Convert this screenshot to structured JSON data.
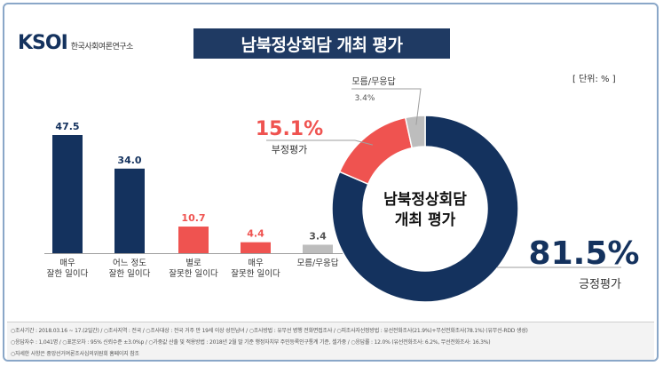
{
  "header": {
    "logo_mark": "KSOI",
    "logo_name": "한국사회여론연구소",
    "title": "남북정상회담 개최 평가",
    "unit": "[ 단위: % ]"
  },
  "chart_data": [
    {
      "type": "bar",
      "categories": [
        "매우\n잘한 일이다",
        "어느 정도\n잘한 일이다",
        "별로\n잘못한 일이다",
        "매우\n잘못한 일이다",
        "모름/무응답"
      ],
      "values": [
        47.5,
        34.0,
        10.7,
        4.4,
        3.4
      ],
      "value_labels": [
        "47.5",
        "34.0",
        "10.7",
        "4.4",
        "3.4"
      ],
      "colors": [
        "#14325e",
        "#14325e",
        "#ef5350",
        "#ef5350",
        "#bdbdbd"
      ],
      "label_colors": [
        "#14325e",
        "#14325e",
        "#ef5350",
        "#ef5350",
        "#555555"
      ]
    },
    {
      "type": "pie",
      "center_text": [
        "남북정상회담",
        "개최 평가"
      ],
      "slices": [
        {
          "label": "긍정평가",
          "value": 81.5,
          "value_label": "81.5%",
          "color": "#14325e"
        },
        {
          "label": "부정평가",
          "value": 15.1,
          "value_label": "15.1%",
          "color": "#ef5350"
        },
        {
          "label": "모름/무응답",
          "value": 3.4,
          "value_label": "3.4%",
          "color": "#bdbdbd"
        }
      ]
    }
  ],
  "footer": {
    "line1": "○조사기간 : 2018.03.16 ~ 17.(2일간)  / ○조사지역 : 전국  / ○조사대상 : 전국 거주 만 19세 이상 성인남녀  / ○조사방법 : 유무선 병행 전화면접조사  / ○피조사자선정방법 : 유선전화조사(21.9%)+무선전화조사(78.1%) (유무선-RDD 생성)",
    "line2": "○응답자수 : 1,041명  / ○표본오차 : 95% 신뢰수준 ±3.0%p  / ○가중값 산출 및 적용방법 : 2018년 2월 말 기준 행정자치부 주민등록인구통계 기준, 셀가중  / ○응답률 : 12.0% (유선전화조사: 6.2%, 무선전화조사: 16.3%)",
    "line3": "○자세한 사항은 중앙선거여론조사심의위원회 홈페이지 참조"
  }
}
